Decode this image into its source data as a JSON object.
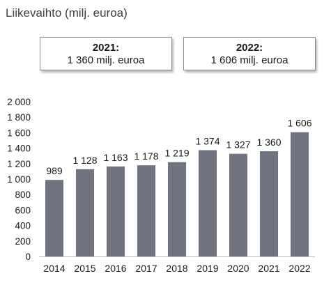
{
  "title": "Liikevaihto (milj. euroa)",
  "highlights": [
    {
      "year": "2021:",
      "value": "1 360 milj. euroa"
    },
    {
      "year": "2022:",
      "value": "1 606 milj. euroa"
    }
  ],
  "colors": {
    "bar": "#71737f"
  },
  "chart_data": {
    "type": "bar",
    "categories": [
      "2014",
      "2015",
      "2016",
      "2017",
      "2018",
      "2019",
      "2020",
      "2021",
      "2022"
    ],
    "values": [
      989,
      1128,
      1163,
      1178,
      1219,
      1374,
      1327,
      1360,
      1606
    ],
    "data_labels": [
      "989",
      "1 128",
      "1 163",
      "1 178",
      "1 219",
      "1 374",
      "1 327",
      "1 360",
      "1 606"
    ],
    "ylim": [
      0,
      2000
    ],
    "yticks": [
      0,
      200,
      400,
      600,
      800,
      1000,
      1200,
      1400,
      1600,
      1800,
      2000
    ],
    "ytick_labels": [
      "0",
      "200",
      "400",
      "600",
      "800",
      "1 000",
      "1 200",
      "1 400",
      "1 600",
      "1 800",
      "2 000"
    ],
    "grid": false,
    "legend": "none"
  }
}
